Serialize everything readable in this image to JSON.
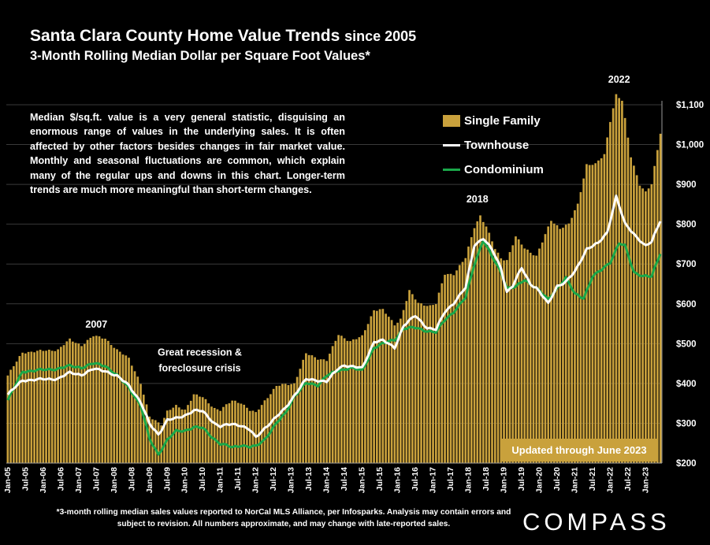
{
  "header": {
    "title": "Santa Clara County Home Value Trends",
    "title_suffix": "since 2005",
    "subtitle": "3-Month Rolling Median Dollar per Square Foot Values*"
  },
  "note": "Median $/sq.ft. value is a very general statistic, disguising an enormous range of values in the underlying sales. It is often affected by other factors besides changes in fair market value. Monthly and seasonal fluctuations are common, which explain many of the regular ups and downs in this chart. Longer-term trends are much more meaningful than short-term changes.",
  "updated_badge": "Updated through June 2023",
  "footnote": "*3-month rolling median sales values reported to NorCal MLS Alliance, per Infosparks. Analysis may contain errors and subject to revision. All numbers approximate, and may change with late-reported sales.",
  "brand": "COMPASS",
  "colors": {
    "single_family": "#c9a13c",
    "townhouse": "#ffffff",
    "condominium": "#1aa84a",
    "background": "#000000"
  },
  "chart_data": {
    "type": "bar",
    "title": "Santa Clara County Home Value Trends since 2005",
    "subtitle": "3-Month Rolling Median Dollar per Square Foot Values*",
    "x_start": "2005-01",
    "x_end": "2023-06",
    "x_tick_labels": [
      "Jan-05",
      "Jul-05",
      "Jan-06",
      "Jul-06",
      "Jan-07",
      "Jul-07",
      "Jan-08",
      "Jul-08",
      "Jan-09",
      "Jul-09",
      "Jan-10",
      "Jul-10",
      "Jan-11",
      "Jul-11",
      "Jan-12",
      "Jul-12",
      "Jan-13",
      "Jul-13",
      "Jan-14",
      "Jul-14",
      "Jan-15",
      "Jul-15",
      "Jan-16",
      "Jul-16",
      "Jan-17",
      "Jul-17",
      "Jan-18",
      "Jul-18",
      "Jan-19",
      "Jul-19",
      "Jan-20",
      "Jul-20",
      "Jan-21",
      "Jul-21",
      "Jan-22",
      "Jul-22",
      "Jan-23"
    ],
    "y_tick_labels": [
      "$200",
      "$300",
      "$400",
      "$500",
      "$600",
      "$700",
      "$800",
      "$900",
      "$1,000",
      "$1,100"
    ],
    "ylim": [
      200,
      1100
    ],
    "y_axis_side": "right",
    "legend_position": "top-right",
    "series": [
      {
        "name": "Single Family",
        "kind": "bar",
        "color": "#c9a13c",
        "keyframes": [
          [
            "2005-01",
            420
          ],
          [
            "2005-06",
            478
          ],
          [
            "2006-06",
            485
          ],
          [
            "2006-10",
            510
          ],
          [
            "2007-02",
            496
          ],
          [
            "2007-06",
            519
          ],
          [
            "2007-10",
            514
          ],
          [
            "2008-02",
            483
          ],
          [
            "2008-06",
            464
          ],
          [
            "2008-10",
            400
          ],
          [
            "2009-01",
            316
          ],
          [
            "2009-05",
            298
          ],
          [
            "2009-07",
            330
          ],
          [
            "2009-10",
            343
          ],
          [
            "2010-01",
            334
          ],
          [
            "2010-04",
            372
          ],
          [
            "2010-07",
            365
          ],
          [
            "2010-11",
            338
          ],
          [
            "2011-01",
            333
          ],
          [
            "2011-05",
            357
          ],
          [
            "2011-08",
            352
          ],
          [
            "2011-11",
            332
          ],
          [
            "2012-01",
            326
          ],
          [
            "2012-04",
            357
          ],
          [
            "2012-08",
            393
          ],
          [
            "2012-11",
            398
          ],
          [
            "2013-02",
            400
          ],
          [
            "2013-06",
            475
          ],
          [
            "2013-10",
            463
          ],
          [
            "2014-01",
            458
          ],
          [
            "2014-05",
            523
          ],
          [
            "2014-09",
            506
          ],
          [
            "2015-01",
            518
          ],
          [
            "2015-05",
            585
          ],
          [
            "2015-08",
            585
          ],
          [
            "2015-12",
            548
          ],
          [
            "2016-02",
            562
          ],
          [
            "2016-05",
            632
          ],
          [
            "2016-08",
            602
          ],
          [
            "2016-12",
            595
          ],
          [
            "2017-02",
            600
          ],
          [
            "2017-05",
            675
          ],
          [
            "2017-08",
            675
          ],
          [
            "2017-12",
            715
          ],
          [
            "2018-03",
            793
          ],
          [
            "2018-05",
            822
          ],
          [
            "2018-07",
            794
          ],
          [
            "2018-10",
            738
          ],
          [
            "2018-12",
            715
          ],
          [
            "2019-02",
            710
          ],
          [
            "2019-05",
            768
          ],
          [
            "2019-08",
            740
          ],
          [
            "2019-10",
            730
          ],
          [
            "2019-12",
            720
          ],
          [
            "2020-02",
            755
          ],
          [
            "2020-05",
            810
          ],
          [
            "2020-08",
            790
          ],
          [
            "2020-11",
            800
          ],
          [
            "2021-02",
            850
          ],
          [
            "2021-05",
            950
          ],
          [
            "2021-08",
            950
          ],
          [
            "2021-11",
            975
          ],
          [
            "2022-01",
            1060
          ],
          [
            "2022-03",
            1125
          ],
          [
            "2022-05",
            1110
          ],
          [
            "2022-08",
            970
          ],
          [
            "2022-11",
            900
          ],
          [
            "2023-01",
            880
          ],
          [
            "2023-03",
            900
          ],
          [
            "2023-06",
            1030
          ]
        ]
      },
      {
        "name": "Townhouse",
        "kind": "line",
        "color": "#ffffff",
        "keyframes": [
          [
            "2005-01",
            372
          ],
          [
            "2005-06",
            408
          ],
          [
            "2006-06",
            412
          ],
          [
            "2006-10",
            427
          ],
          [
            "2007-02",
            422
          ],
          [
            "2007-06",
            436
          ],
          [
            "2007-10",
            432
          ],
          [
            "2008-02",
            418
          ],
          [
            "2008-06",
            396
          ],
          [
            "2008-10",
            353
          ],
          [
            "2009-01",
            298
          ],
          [
            "2009-04",
            272
          ],
          [
            "2009-07",
            308
          ],
          [
            "2009-10",
            312
          ],
          [
            "2010-01",
            320
          ],
          [
            "2010-04",
            332
          ],
          [
            "2010-07",
            330
          ],
          [
            "2010-11",
            300
          ],
          [
            "2011-01",
            292
          ],
          [
            "2011-05",
            298
          ],
          [
            "2011-08",
            295
          ],
          [
            "2011-11",
            283
          ],
          [
            "2012-01",
            264
          ],
          [
            "2012-04",
            288
          ],
          [
            "2012-08",
            316
          ],
          [
            "2012-11",
            338
          ],
          [
            "2013-02",
            370
          ],
          [
            "2013-06",
            410
          ],
          [
            "2013-10",
            408
          ],
          [
            "2014-01",
            405
          ],
          [
            "2014-05",
            438
          ],
          [
            "2014-07",
            446
          ],
          [
            "2015-01",
            438
          ],
          [
            "2015-05",
            505
          ],
          [
            "2015-08",
            508
          ],
          [
            "2015-12",
            490
          ],
          [
            "2016-03",
            545
          ],
          [
            "2016-07",
            570
          ],
          [
            "2016-11",
            540
          ],
          [
            "2017-02",
            535
          ],
          [
            "2017-05",
            580
          ],
          [
            "2017-08",
            602
          ],
          [
            "2017-12",
            640
          ],
          [
            "2018-03",
            748
          ],
          [
            "2018-06",
            765
          ],
          [
            "2018-09",
            735
          ],
          [
            "2018-12",
            690
          ],
          [
            "2019-02",
            630
          ],
          [
            "2019-04",
            645
          ],
          [
            "2019-07",
            690
          ],
          [
            "2019-10",
            650
          ],
          [
            "2019-12",
            640
          ],
          [
            "2020-04",
            600
          ],
          [
            "2020-07",
            645
          ],
          [
            "2020-10",
            655
          ],
          [
            "2021-01",
            680
          ],
          [
            "2021-05",
            738
          ],
          [
            "2021-09",
            752
          ],
          [
            "2021-12",
            780
          ],
          [
            "2022-03",
            870
          ],
          [
            "2022-06",
            800
          ],
          [
            "2022-10",
            768
          ],
          [
            "2023-01",
            745
          ],
          [
            "2023-03",
            755
          ],
          [
            "2023-06",
            810
          ]
        ]
      },
      {
        "name": "Condominium",
        "kind": "line",
        "color": "#1aa84a",
        "keyframes": [
          [
            "2005-01",
            358
          ],
          [
            "2005-06",
            430
          ],
          [
            "2006-06",
            437
          ],
          [
            "2006-10",
            444
          ],
          [
            "2007-02",
            440
          ],
          [
            "2007-06",
            450
          ],
          [
            "2007-10",
            445
          ],
          [
            "2008-02",
            420
          ],
          [
            "2008-06",
            390
          ],
          [
            "2008-10",
            345
          ],
          [
            "2009-01",
            260
          ],
          [
            "2009-04",
            222
          ],
          [
            "2009-07",
            258
          ],
          [
            "2009-10",
            280
          ],
          [
            "2010-01",
            282
          ],
          [
            "2010-04",
            290
          ],
          [
            "2010-07",
            288
          ],
          [
            "2010-11",
            260
          ],
          [
            "2011-01",
            248
          ],
          [
            "2011-05",
            240
          ],
          [
            "2011-08",
            245
          ],
          [
            "2011-11",
            240
          ],
          [
            "2012-01",
            242
          ],
          [
            "2012-04",
            260
          ],
          [
            "2012-08",
            300
          ],
          [
            "2012-11",
            325
          ],
          [
            "2013-02",
            368
          ],
          [
            "2013-06",
            400
          ],
          [
            "2013-10",
            396
          ],
          [
            "2014-01",
            420
          ],
          [
            "2014-05",
            432
          ],
          [
            "2014-09",
            440
          ],
          [
            "2015-01",
            432
          ],
          [
            "2015-05",
            490
          ],
          [
            "2015-08",
            500
          ],
          [
            "2015-12",
            510
          ],
          [
            "2016-03",
            538
          ],
          [
            "2016-07",
            540
          ],
          [
            "2016-11",
            532
          ],
          [
            "2017-02",
            528
          ],
          [
            "2017-05",
            560
          ],
          [
            "2017-08",
            580
          ],
          [
            "2017-12",
            615
          ],
          [
            "2018-03",
            700
          ],
          [
            "2018-06",
            760
          ],
          [
            "2018-09",
            718
          ],
          [
            "2018-12",
            680
          ],
          [
            "2019-02",
            640
          ],
          [
            "2019-05",
            642
          ],
          [
            "2019-08",
            660
          ],
          [
            "2019-12",
            640
          ],
          [
            "2020-04",
            610
          ],
          [
            "2020-07",
            640
          ],
          [
            "2020-10",
            665
          ],
          [
            "2021-01",
            625
          ],
          [
            "2021-04",
            615
          ],
          [
            "2021-07",
            668
          ],
          [
            "2021-10",
            685
          ],
          [
            "2022-01",
            705
          ],
          [
            "2022-04",
            752
          ],
          [
            "2022-06",
            745
          ],
          [
            "2022-09",
            680
          ],
          [
            "2022-12",
            670
          ],
          [
            "2023-03",
            668
          ],
          [
            "2023-06",
            728
          ]
        ]
      }
    ],
    "annotations": [
      {
        "text": "2007",
        "x": "2007-07",
        "y": 540
      },
      {
        "text": "Great recession &",
        "x": "2010-06",
        "y": 470
      },
      {
        "text": "foreclosure crisis",
        "x": "2010-06",
        "y": 430
      },
      {
        "text": "2018",
        "x": "2018-04",
        "y": 855
      },
      {
        "text": "2022",
        "x": "2022-04",
        "y": 1155
      }
    ]
  }
}
